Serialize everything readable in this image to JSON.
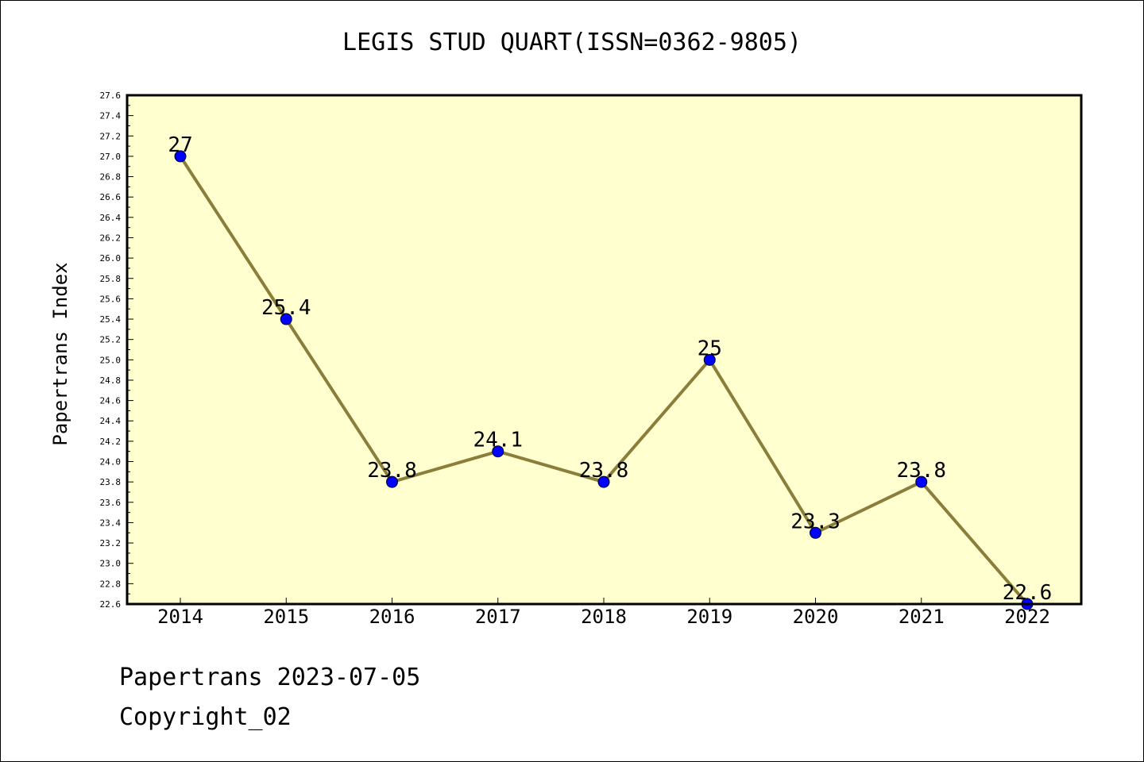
{
  "chart_data": {
    "type": "line",
    "title": "LEGIS STUD QUART(ISSN=0362-9805)",
    "xlabel": "",
    "ylabel": "Papertrans Index",
    "categories": [
      "2014",
      "2015",
      "2016",
      "2017",
      "2018",
      "2019",
      "2020",
      "2021",
      "2022"
    ],
    "series": [
      {
        "values": [
          27,
          25.4,
          23.8,
          24.1,
          23.8,
          25,
          23.3,
          23.8,
          22.6
        ],
        "labels": [
          "27",
          "25.4",
          "23.8",
          "24.1",
          "23.8",
          "25",
          "23.3",
          "23.8",
          "22.6"
        ]
      }
    ],
    "ylim": [
      22.6,
      27.6
    ],
    "yticks": [
      "22.6",
      "22.8",
      "23.0",
      "23.2",
      "23.4",
      "23.6",
      "23.8",
      "24.0",
      "24.2",
      "24.4",
      "24.6",
      "24.8",
      "25.0",
      "25.2",
      "25.4",
      "25.6",
      "25.8",
      "26.0",
      "26.2",
      "26.4",
      "26.6",
      "26.8",
      "27.0",
      "27.2",
      "27.4",
      "27.6"
    ],
    "grid": false,
    "legend": "none",
    "colors": {
      "plot_bg": "#ffffd0",
      "line": "#8b7d3a",
      "marker": "#0000ff"
    }
  },
  "footer": {
    "line1": "Papertrans 2023-07-05",
    "line2": "Copyright_02"
  }
}
